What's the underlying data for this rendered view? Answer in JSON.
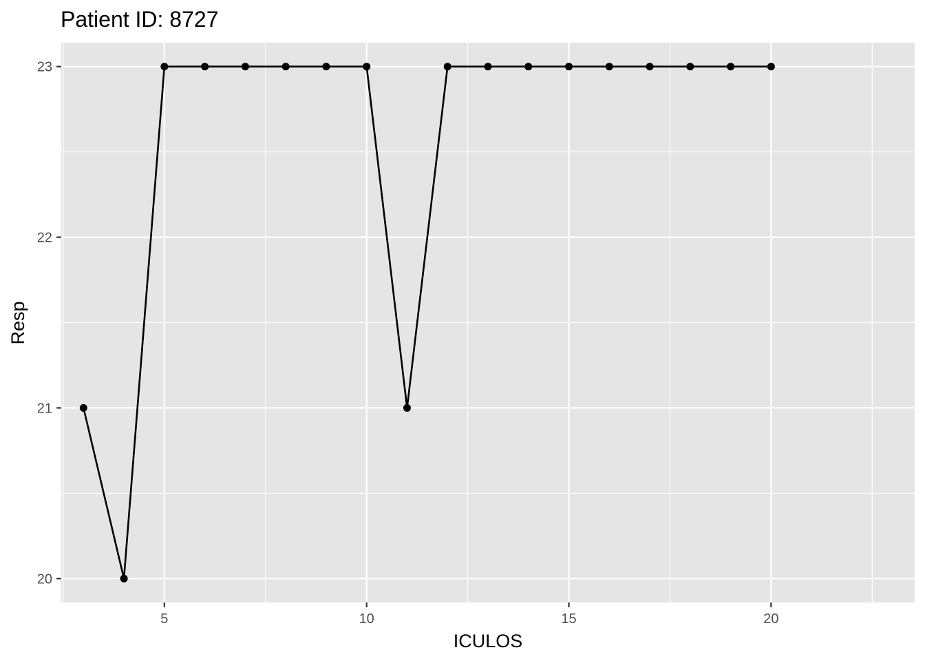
{
  "chart_data": {
    "type": "line",
    "title": "Patient ID: 8727",
    "xlabel": "ICULOS",
    "ylabel": "Resp",
    "x": [
      3,
      4,
      5,
      6,
      7,
      8,
      9,
      10,
      11,
      12,
      13,
      14,
      15,
      16,
      17,
      18,
      19,
      20
    ],
    "series": [
      {
        "values": [
          21,
          20,
          23,
          23,
          23,
          23,
          23,
          23,
          21,
          23,
          23,
          23,
          23,
          23,
          23,
          23,
          23,
          23
        ]
      }
    ],
    "xlim": [
      2.45,
      23.55
    ],
    "ylim": [
      19.86,
      23.14
    ],
    "x_ticks": [
      5,
      10,
      15,
      20
    ],
    "y_ticks": [
      20,
      21,
      22,
      23
    ],
    "grid": true,
    "colors": {
      "panel": "#e5e5e5",
      "grid": "#ffffff",
      "line": "#000000",
      "point": "#000000"
    }
  }
}
